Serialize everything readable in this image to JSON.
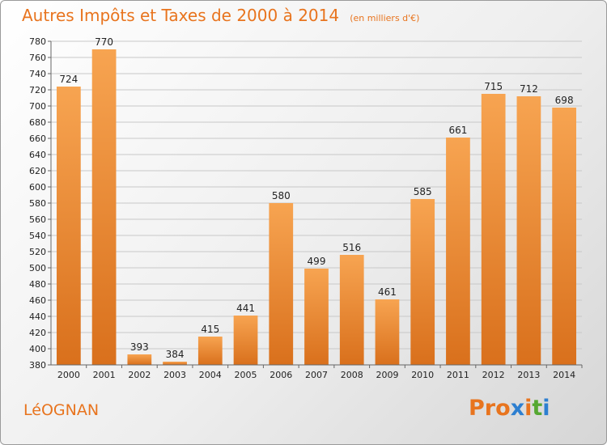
{
  "header": {
    "title": "Autres Impôts et Taxes de 2000 à 2014",
    "unit": "(en milliers d'€)"
  },
  "footer": {
    "place": "LéOGNAN",
    "logo": "Proxiti"
  },
  "colors": {
    "title": "#e8741e",
    "bar_light": "#f7a451",
    "bar_dark": "#d9701c",
    "grid": "#c8c8c8",
    "logo_letters": [
      "#e8741e",
      "#e8741e",
      "#e8741e",
      "#2d7fd0",
      "#e8741e",
      "#56a832",
      "#2d7fd0"
    ]
  },
  "chart_data": {
    "type": "bar",
    "title": "Autres Impôts et Taxes de 2000 à 2014",
    "subtitle": "(en milliers d'€)",
    "categories": [
      "2000",
      "2001",
      "2002",
      "2003",
      "2004",
      "2005",
      "2006",
      "2007",
      "2008",
      "2009",
      "2010",
      "2011",
      "2012",
      "2013",
      "2014"
    ],
    "values": [
      724,
      770,
      393,
      384,
      415,
      441,
      580,
      499,
      516,
      461,
      585,
      661,
      715,
      712,
      698
    ],
    "ylim": [
      380,
      780
    ],
    "ytick_step": 20,
    "grid": true,
    "legend": "none"
  }
}
